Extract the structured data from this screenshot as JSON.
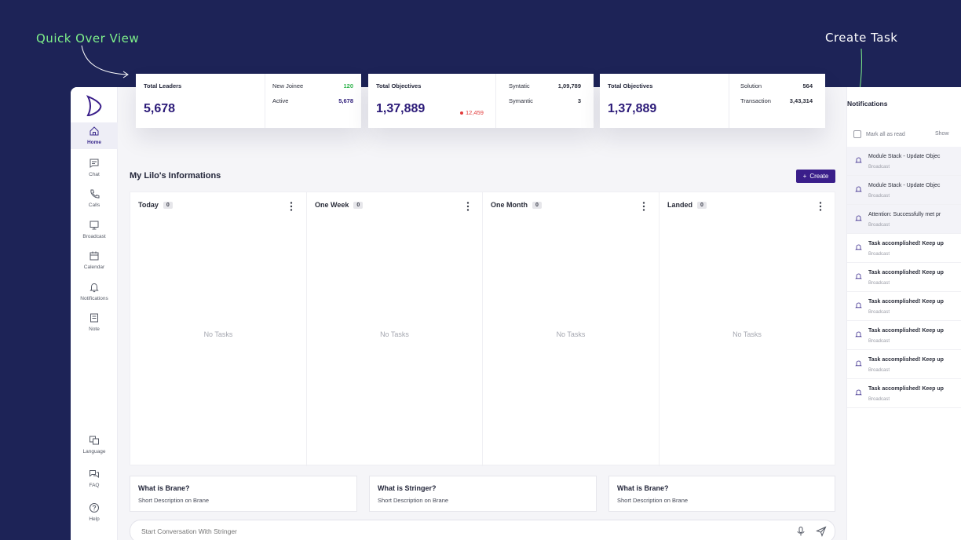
{
  "annotations": {
    "left": "Quick Over View",
    "right": "Create Task"
  },
  "colors": {
    "accent": "#3a1e8a",
    "positive": "#2db34a",
    "negative": "#e23a3a",
    "background": "#1d2357"
  },
  "sidebar": {
    "items": [
      {
        "label": "Home",
        "icon": "home-icon"
      },
      {
        "label": "Chat",
        "icon": "chat-icon"
      },
      {
        "label": "Calls",
        "icon": "phone-icon"
      },
      {
        "label": "Broadcast",
        "icon": "broadcast-icon"
      },
      {
        "label": "Calendar",
        "icon": "calendar-icon"
      },
      {
        "label": "Notifications",
        "icon": "bell-icon"
      },
      {
        "label": "Note",
        "icon": "note-icon"
      }
    ],
    "bottom_items": [
      {
        "label": "Language",
        "icon": "language-icon"
      },
      {
        "label": "FAQ",
        "icon": "faq-icon"
      },
      {
        "label": "Help",
        "icon": "help-icon"
      }
    ]
  },
  "stats": [
    {
      "title": "Total Leaders",
      "value": "5,678",
      "rows": [
        {
          "label": "New Joinee",
          "value": "120"
        },
        {
          "label": "Active",
          "value": "5,678"
        }
      ]
    },
    {
      "title": "Total Objectives",
      "value": "1,37,889",
      "change": "12,459",
      "rows": [
        {
          "label": "Syntatic",
          "value": "1,09,789"
        },
        {
          "label": "Symantic",
          "value": "3"
        }
      ]
    },
    {
      "title": "Total Objectives",
      "value": "1,37,889",
      "rows": [
        {
          "label": "Solution",
          "value": "564"
        },
        {
          "label": "Transaction",
          "value": "3,43,314"
        }
      ]
    }
  ],
  "main": {
    "title": "My Lilo's Informations",
    "create_label": "Create",
    "columns": [
      {
        "name": "Today",
        "count": "0",
        "empty": "No Tasks"
      },
      {
        "name": "One Week",
        "count": "0",
        "empty": "No Tasks"
      },
      {
        "name": "One Month",
        "count": "0",
        "empty": "No Tasks"
      },
      {
        "name": "Landed",
        "count": "0",
        "empty": "No Tasks"
      }
    ],
    "faq_cards": [
      {
        "question": "What is  Brane?",
        "desc": "Short Description on Brane"
      },
      {
        "question": "What is  Stringer?",
        "desc": "Short Description on Brane"
      },
      {
        "question": "What is  Brane?",
        "desc": "Short Description on Brane"
      }
    ],
    "chat_placeholder": "Start Conversation With Stringer"
  },
  "notifications": {
    "title": "Notifications",
    "mark_all": "Mark all as read",
    "show": "Show",
    "items": [
      {
        "title": "Module Stack - Update Objec",
        "sub": "Broadcast"
      },
      {
        "title": "Module Stack - Update Objec",
        "sub": "Broadcast"
      },
      {
        "title": "Attention: Successfully met pr",
        "sub": "Broadcast"
      },
      {
        "title": "Task accomplished! Keep up",
        "sub": "Broadcast"
      },
      {
        "title": "Task accomplished! Keep up",
        "sub": "Broadcast"
      },
      {
        "title": "Task accomplished! Keep up",
        "sub": "Broadcast"
      },
      {
        "title": "Task accomplished! Keep up",
        "sub": "Broadcast"
      },
      {
        "title": "Task accomplished! Keep up",
        "sub": "Broadcast"
      },
      {
        "title": "Task accomplished! Keep up",
        "sub": "Broadcast"
      }
    ]
  }
}
